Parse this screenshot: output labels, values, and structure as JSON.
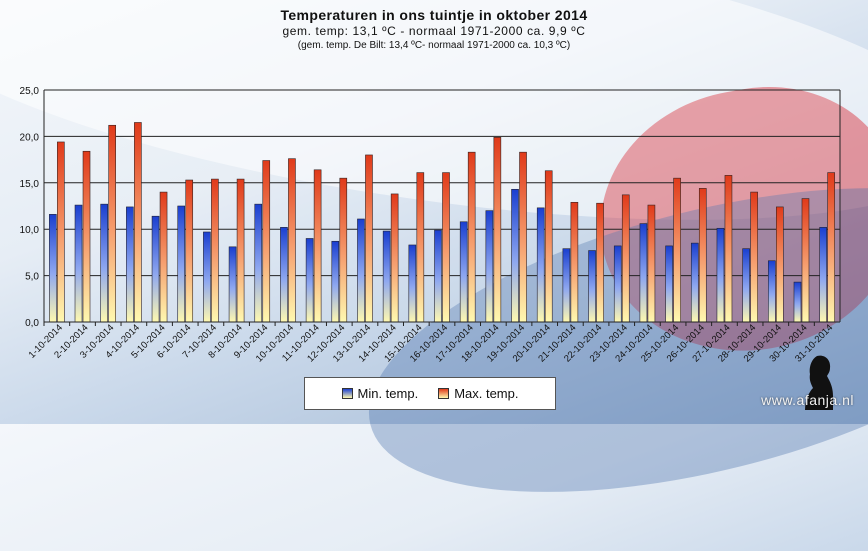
{
  "colors": {
    "min_bar": "#1a3fd0",
    "max_bar": "#e03a1a",
    "bar_base": "#fff9b0"
  },
  "chart_data": {
    "type": "bar",
    "title": "Temperaturen  in ons tuintje in oktober 2014",
    "subtitle": "gem.  temp:  13,1 ºC - normaal  1971-2000  ca. 9,9 ºC",
    "subtitle2": "(gem. temp. De Bilt: 13,4 ºC- normaal 1971-2000 ca. 10,3 ºC)",
    "xlabel": "",
    "ylabel": "",
    "ylim": [
      0,
      25
    ],
    "yticks": [
      "0,0",
      "5,0",
      "10,0",
      "15,0",
      "20,0",
      "25,0"
    ],
    "grid": true,
    "legend_position": "bottom",
    "categories": [
      "1-10-2014",
      "2-10-2014",
      "3-10-2014",
      "4-10-2014",
      "5-10-2014",
      "6-10-2014",
      "7-10-2014",
      "8-10-2014",
      "9-10-2014",
      "10-10-2014",
      "11-10-2014",
      "12-10-2014",
      "13-10-2014",
      "14-10-2014",
      "15-10-2014",
      "16-10-2014",
      "17-10-2014",
      "18-10-2014",
      "19-10-2014",
      "20-10-2014",
      "21-10-2014",
      "22-10-2014",
      "23-10-2014",
      "24-10-2014",
      "25-10-2014",
      "26-10-2014",
      "27-10-2014",
      "28-10-2014",
      "29-10-2014",
      "30-10-2014",
      "31-10-2014"
    ],
    "series": [
      {
        "name": "Min. temp.",
        "values": [
          11.6,
          12.6,
          12.7,
          12.4,
          11.4,
          12.5,
          9.7,
          8.1,
          12.7,
          10.2,
          9.0,
          8.7,
          11.1,
          9.8,
          8.3,
          9.9,
          10.8,
          12.0,
          14.3,
          12.3,
          7.9,
          7.7,
          8.2,
          10.6,
          8.2,
          8.5,
          10.1,
          7.9,
          6.6,
          4.3,
          10.2
        ]
      },
      {
        "name": "Max. temp.",
        "values": [
          19.4,
          18.4,
          21.2,
          21.5,
          14.0,
          15.3,
          15.4,
          15.4,
          17.4,
          17.6,
          16.4,
          15.5,
          18.0,
          13.8,
          16.1,
          16.1,
          18.3,
          19.9,
          18.3,
          16.3,
          12.9,
          12.8,
          13.7,
          12.6,
          15.5,
          14.4,
          15.8,
          14.0,
          12.4,
          13.3,
          16.1
        ]
      }
    ]
  },
  "legend": {
    "min_label": "Min. temp.",
    "max_label": "Max. temp."
  },
  "watermark": "www.afanja.nl"
}
